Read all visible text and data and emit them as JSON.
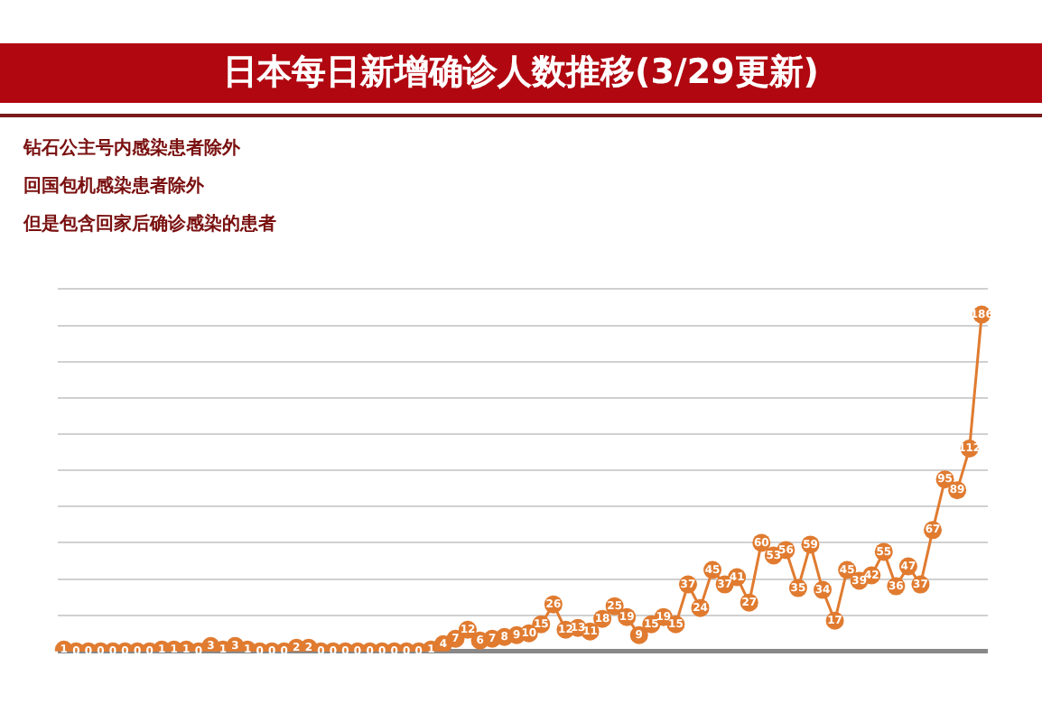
{
  "chart_data": {
    "type": "line",
    "title": "日本每日新增确诊人数推移(3/29更新)",
    "annotations": [
      "钻石公主号内感染患者除外",
      "回国包机感染患者除外",
      "但是包含回家后确诊感染的患者"
    ],
    "categories": [
      null,
      null,
      null,
      null,
      null,
      null,
      null,
      null,
      null,
      null,
      null,
      null,
      null,
      null,
      null,
      null,
      null,
      null,
      null,
      null,
      null,
      null,
      null,
      null,
      null,
      null,
      null,
      null,
      null,
      null,
      null,
      null,
      null,
      null,
      null,
      null,
      null,
      null,
      null,
      null,
      null,
      null,
      null,
      null,
      null,
      null,
      null,
      null,
      null,
      null,
      null,
      null,
      null,
      null,
      null,
      null,
      null,
      null,
      null,
      null,
      null,
      null,
      null,
      null,
      null,
      null,
      null,
      null,
      null,
      null,
      null,
      null,
      null,
      null,
      null,
      null
    ],
    "values": [
      1,
      0,
      0,
      0,
      0,
      0,
      0,
      0,
      1,
      1,
      1,
      0,
      3,
      1,
      3,
      1,
      0,
      0,
      0,
      2,
      2,
      0,
      0,
      0,
      0,
      0,
      0,
      0,
      0,
      0,
      1,
      4,
      7,
      12,
      6,
      7,
      8,
      9,
      10,
      15,
      26,
      12,
      13,
      11,
      18,
      25,
      19,
      9,
      15,
      19,
      15,
      37,
      24,
      45,
      37,
      41,
      27,
      60,
      53,
      56,
      35,
      59,
      34,
      17,
      45,
      39,
      42,
      55,
      36,
      47,
      37,
      67,
      95,
      89,
      112,
      186
    ],
    "color": "#e07b30",
    "marker": "circle",
    "data_labels": true,
    "ylim": [
      0,
      200
    ],
    "yticks": [
      {
        "value": 0,
        "label": null
      },
      {
        "value": 20,
        "label": null
      },
      {
        "value": 40,
        "label": null
      },
      {
        "value": 60,
        "label": null
      },
      {
        "value": 80,
        "label": null
      },
      {
        "value": 100,
        "label": null
      },
      {
        "value": 120,
        "label": null
      },
      {
        "value": 140,
        "label": null
      },
      {
        "value": 160,
        "label": null
      },
      {
        "value": 180,
        "label": null
      },
      {
        "value": 200,
        "label": null
      }
    ],
    "grid": "y",
    "legend": false
  }
}
